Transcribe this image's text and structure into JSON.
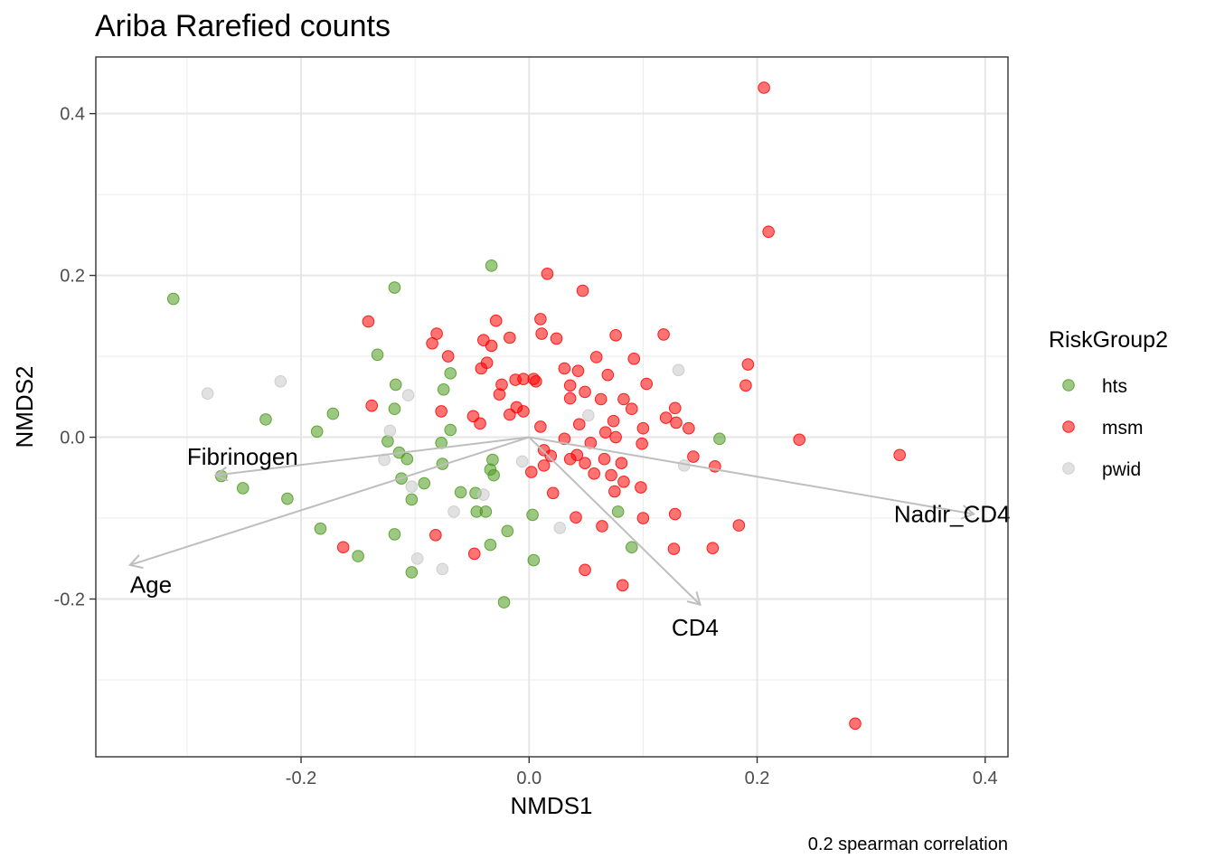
{
  "chart_data": {
    "type": "scatter",
    "title": "Ariba Rarefied counts",
    "xlabel": "NMDS1",
    "ylabel": "NMDS2",
    "caption": "0.2 spearman correlation",
    "xlim": [
      -0.38,
      0.42
    ],
    "ylim": [
      -0.395,
      0.47
    ],
    "x_ticks": [
      -0.2,
      0.0,
      0.2,
      0.4
    ],
    "x_tick_labels": [
      "-0.2",
      "0.0",
      "0.2",
      "0.4"
    ],
    "y_ticks": [
      -0.2,
      0.0,
      0.2,
      0.4
    ],
    "y_tick_labels": [
      "-0.2",
      "0.0",
      "0.2",
      "0.4"
    ],
    "grid": true,
    "legend": {
      "title": "RiskGroup2",
      "position": "right",
      "entries": [
        {
          "label": "hts",
          "color": "#4d9a1e"
        },
        {
          "label": "msm",
          "color": "#ff0000"
        },
        {
          "label": "pwid",
          "color": "#c8c8c8"
        }
      ]
    },
    "arrow_color": "#bebebe",
    "arrows": [
      {
        "label": "Fibrinogen",
        "x": -0.275,
        "y": -0.047,
        "label_x": -0.3,
        "label_y": -0.024
      },
      {
        "label": "Age",
        "x": -0.35,
        "y": -0.158,
        "label_x": -0.35,
        "label_y": -0.182
      },
      {
        "label": "CD4",
        "x": 0.15,
        "y": -0.207,
        "label_x": 0.125,
        "label_y": -0.235
      },
      {
        "label": "Nadir_CD4",
        "x": 0.39,
        "y": -0.095,
        "label_x": 0.32,
        "label_y": -0.095
      }
    ],
    "series": [
      {
        "name": "hts",
        "color": "#4d9a1e",
        "points": [
          [
            -0.312,
            0.171
          ],
          [
            -0.118,
            0.185
          ],
          [
            -0.033,
            0.212
          ],
          [
            -0.133,
            0.102
          ],
          [
            -0.117,
            0.065
          ],
          [
            -0.069,
            0.079
          ],
          [
            -0.075,
            0.059
          ],
          [
            -0.118,
            0.035
          ],
          [
            -0.172,
            0.029
          ],
          [
            -0.231,
            0.022
          ],
          [
            -0.186,
            0.007
          ],
          [
            -0.069,
            0.009
          ],
          [
            -0.124,
            -0.005
          ],
          [
            -0.077,
            -0.007
          ],
          [
            -0.114,
            -0.019
          ],
          [
            -0.107,
            -0.027
          ],
          [
            -0.032,
            -0.028
          ],
          [
            -0.076,
            -0.033
          ],
          [
            -0.034,
            -0.04
          ],
          [
            -0.27,
            -0.048
          ],
          [
            -0.112,
            -0.051
          ],
          [
            -0.031,
            -0.047
          ],
          [
            -0.092,
            -0.057
          ],
          [
            -0.251,
            -0.063
          ],
          [
            -0.06,
            -0.068
          ],
          [
            -0.047,
            -0.069
          ],
          [
            -0.103,
            -0.077
          ],
          [
            -0.212,
            -0.076
          ],
          [
            -0.046,
            -0.092
          ],
          [
            -0.038,
            -0.092
          ],
          [
            0.003,
            -0.096
          ],
          [
            0.078,
            -0.092
          ],
          [
            -0.183,
            -0.113
          ],
          [
            -0.019,
            -0.116
          ],
          [
            -0.118,
            -0.12
          ],
          [
            -0.034,
            -0.133
          ],
          [
            0.09,
            -0.136
          ],
          [
            -0.15,
            -0.147
          ],
          [
            0.004,
            -0.152
          ],
          [
            -0.103,
            -0.167
          ],
          [
            -0.022,
            -0.204
          ],
          [
            0.167,
            -0.002
          ]
        ]
      },
      {
        "name": "msm",
        "color": "#ff0000",
        "points": [
          [
            0.206,
            0.432
          ],
          [
            0.21,
            0.254
          ],
          [
            0.016,
            0.202
          ],
          [
            0.047,
            0.181
          ],
          [
            -0.141,
            0.143
          ],
          [
            -0.029,
            0.144
          ],
          [
            0.01,
            0.146
          ],
          [
            0.011,
            0.128
          ],
          [
            -0.081,
            0.128
          ],
          [
            -0.017,
            0.123
          ],
          [
            0.076,
            0.126
          ],
          [
            0.118,
            0.127
          ],
          [
            0.024,
            0.122
          ],
          [
            -0.085,
            0.116
          ],
          [
            -0.04,
            0.12
          ],
          [
            -0.033,
            0.113
          ],
          [
            -0.071,
            0.1
          ],
          [
            0.059,
            0.099
          ],
          [
            0.092,
            0.097
          ],
          [
            0.192,
            0.09
          ],
          [
            -0.037,
            0.092
          ],
          [
            -0.042,
            0.085
          ],
          [
            0.031,
            0.085
          ],
          [
            0.043,
            0.082
          ],
          [
            0.069,
            0.077
          ],
          [
            -0.012,
            0.071
          ],
          [
            -0.005,
            0.072
          ],
          [
            0.004,
            0.072
          ],
          [
            0.006,
            0.069
          ],
          [
            -0.024,
            0.065
          ],
          [
            0.036,
            0.064
          ],
          [
            0.103,
            0.066
          ],
          [
            0.19,
            0.064
          ],
          [
            0.049,
            0.056
          ],
          [
            -0.026,
            0.053
          ],
          [
            0.036,
            0.048
          ],
          [
            0.063,
            0.047
          ],
          [
            0.083,
            0.047
          ],
          [
            -0.138,
            0.039
          ],
          [
            -0.011,
            0.037
          ],
          [
            0.09,
            0.035
          ],
          [
            0.128,
            0.036
          ],
          [
            -0.077,
            0.032
          ],
          [
            -0.049,
            0.026
          ],
          [
            -0.017,
            0.028
          ],
          [
            -0.005,
            0.032
          ],
          [
            0.12,
            0.024
          ],
          [
            0.074,
            0.02
          ],
          [
            0.129,
            0.018
          ],
          [
            0.044,
            0.016
          ],
          [
            -0.043,
            0.017
          ],
          [
            0.01,
            0.013
          ],
          [
            0.1,
            0.011
          ],
          [
            0.14,
            0.011
          ],
          [
            0.067,
            0.006
          ],
          [
            0.076,
            0.0
          ],
          [
            0.031,
            -0.002
          ],
          [
            0.237,
            -0.003
          ],
          [
            0.054,
            -0.007
          ],
          [
            0.099,
            -0.008
          ],
          [
            0.013,
            -0.016
          ],
          [
            0.019,
            -0.023
          ],
          [
            0.042,
            -0.022
          ],
          [
            0.325,
            -0.022
          ],
          [
            0.144,
            -0.024
          ],
          [
            0.036,
            -0.027
          ],
          [
            0.066,
            -0.027
          ],
          [
            0.081,
            -0.032
          ],
          [
            0.049,
            -0.032
          ],
          [
            0.013,
            -0.035
          ],
          [
            0.163,
            -0.036
          ],
          [
            0.057,
            -0.045
          ],
          [
            0.002,
            -0.043
          ],
          [
            0.072,
            -0.047
          ],
          [
            0.083,
            -0.055
          ],
          [
            0.098,
            -0.062
          ],
          [
            0.075,
            -0.067
          ],
          [
            0.021,
            -0.069
          ],
          [
            0.128,
            -0.095
          ],
          [
            0.041,
            -0.099
          ],
          [
            0.1,
            -0.1
          ],
          [
            0.064,
            -0.11
          ],
          [
            0.184,
            -0.109
          ],
          [
            -0.082,
            -0.121
          ],
          [
            -0.163,
            -0.136
          ],
          [
            0.161,
            -0.137
          ],
          [
            0.127,
            -0.138
          ],
          [
            -0.048,
            -0.144
          ],
          [
            0.049,
            -0.164
          ],
          [
            0.082,
            -0.183
          ],
          [
            0.286,
            -0.354
          ]
        ]
      },
      {
        "name": "pwid",
        "color": "#c8c8c8",
        "points": [
          [
            -0.282,
            0.054
          ],
          [
            -0.218,
            0.069
          ],
          [
            -0.106,
            0.052
          ],
          [
            0.131,
            0.083
          ],
          [
            0.052,
            0.027
          ],
          [
            -0.122,
            0.008
          ],
          [
            -0.127,
            -0.028
          ],
          [
            -0.006,
            -0.03
          ],
          [
            0.136,
            -0.035
          ],
          [
            -0.103,
            -0.061
          ],
          [
            -0.04,
            -0.071
          ],
          [
            -0.066,
            -0.092
          ],
          [
            0.027,
            -0.112
          ],
          [
            -0.098,
            -0.15
          ],
          [
            -0.076,
            -0.163
          ]
        ]
      }
    ]
  }
}
